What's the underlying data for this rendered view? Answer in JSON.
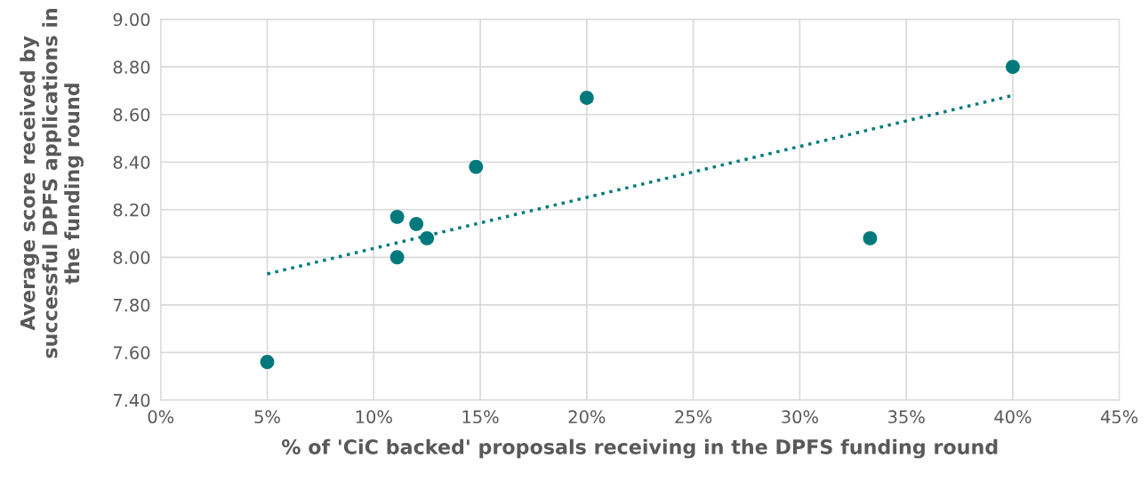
{
  "chart_data": {
    "type": "scatter",
    "xlabel": "% of 'CiC backed' proposals receiving in the DPFS funding round",
    "ylabel": "Average score received by successful DPFS applications in the funding round",
    "series": [
      {
        "color": "#00797c",
        "marker": "circle",
        "x": [
          5,
          11.1,
          11.1,
          12,
          12.5,
          14.8,
          20,
          33.3,
          40
        ],
        "values": [
          7.56,
          8.17,
          8.0,
          8.14,
          8.08,
          8.38,
          8.67,
          8.08,
          8.8
        ]
      },
      {
        "type": "line",
        "color": "#00797c",
        "line_style": "dotted",
        "x": [
          5,
          40
        ],
        "values": [
          7.93,
          8.68
        ]
      }
    ],
    "xlim": [
      0,
      45
    ],
    "ylim": [
      7.4,
      9.0
    ],
    "xticks": [
      {
        "value": 0,
        "label": "0%"
      },
      {
        "value": 5,
        "label": "5%"
      },
      {
        "value": 10,
        "label": "10%"
      },
      {
        "value": 15,
        "label": "15%"
      },
      {
        "value": 20,
        "label": "20%"
      },
      {
        "value": 25,
        "label": "25%"
      },
      {
        "value": 30,
        "label": "30%"
      },
      {
        "value": 35,
        "label": "35%"
      },
      {
        "value": 40,
        "label": "40%"
      },
      {
        "value": 45,
        "label": "45%"
      }
    ],
    "yticks": [
      {
        "value": 7.4,
        "label": "7.40"
      },
      {
        "value": 7.6,
        "label": "7.60"
      },
      {
        "value": 7.8,
        "label": "7.80"
      },
      {
        "value": 8.0,
        "label": "8.00"
      },
      {
        "value": 8.2,
        "label": "8.20"
      },
      {
        "value": 8.4,
        "label": "8.40"
      },
      {
        "value": 8.6,
        "label": "8.60"
      },
      {
        "value": 8.8,
        "label": "8.80"
      },
      {
        "value": 9.0,
        "label": "9.00"
      }
    ],
    "grid": true,
    "legend": false
  }
}
